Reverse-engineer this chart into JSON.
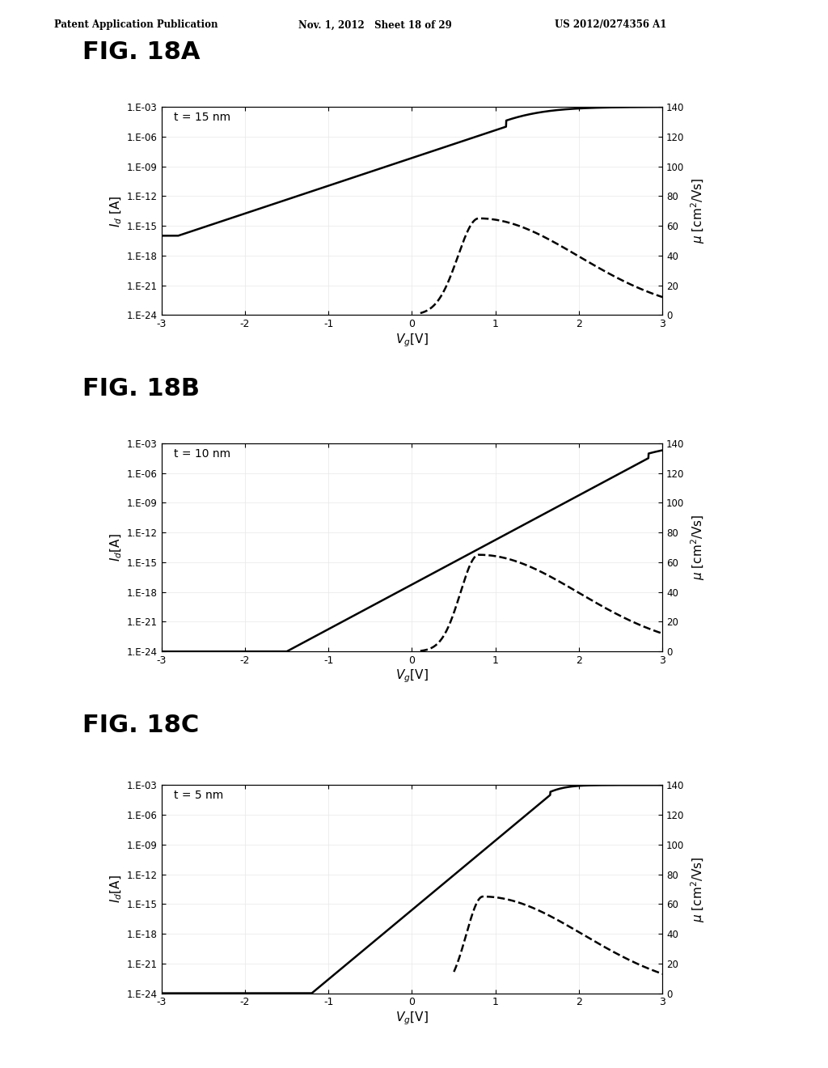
{
  "header_left": "Patent Application Publication",
  "header_mid": "Nov. 1, 2012   Sheet 18 of 29",
  "header_right": "US 2012/0274356 A1",
  "fig_labels": [
    "FIG. 18A",
    "FIG. 18B",
    "FIG. 18C"
  ],
  "annotations": [
    "t = 15 nm",
    "t = 10 nm",
    "t = 5 nm"
  ],
  "bg_color": "#ffffff",
  "configs": [
    {
      "vt": -2.5,
      "ss_inv": 2.5,
      "floor": -15.5,
      "mu_thresh": 0.1,
      "mu_peak_vg": 0.8,
      "mu_peak": 65,
      "mu_sigma_l": 0.25,
      "mu_sigma_r": 1.2
    },
    {
      "vt": -1.0,
      "ss_inv": 2.8,
      "floor": -24,
      "mu_thresh": 0.1,
      "mu_peak_vg": 0.8,
      "mu_peak": 65,
      "mu_sigma_l": 0.22,
      "mu_sigma_r": 1.2
    },
    {
      "vt": -0.5,
      "ss_inv": 3.5,
      "floor": -24,
      "mu_thresh": 0.5,
      "mu_peak_vg": 0.85,
      "mu_peak": 65,
      "mu_sigma_l": 0.2,
      "mu_sigma_r": 1.2
    }
  ]
}
